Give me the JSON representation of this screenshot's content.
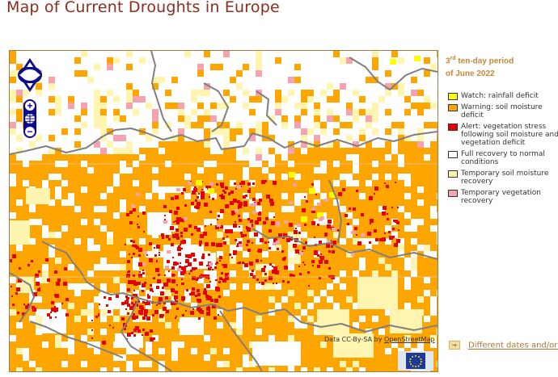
{
  "page": {
    "title": "Map of Current Droughts in Europe"
  },
  "period": {
    "ordinal": "3",
    "ordinal_suffix": "rd",
    "line1_rest": " ten-day period",
    "line2": "of June 2022"
  },
  "legend": [
    {
      "label": "Watch: rainfall deficit",
      "color": "#ffff00"
    },
    {
      "label": "Warning: soil moisture deficit",
      "color": "#ffa500"
    },
    {
      "label": "Alert: vegetation stress following soil moisture and vegetation deficit",
      "color": "#e60000"
    },
    {
      "label": "Full recovery to normal conditions",
      "color": "#ffffff"
    },
    {
      "label": "Temporary soil moisture recovery",
      "color": "#fff4b0"
    },
    {
      "label": "Temporary vegetation recovery",
      "color": "#f5a3b0"
    }
  ],
  "map": {
    "attribution_prefix": "Data CC-By-SA by ",
    "attribution_link": "OpenStreetMap",
    "colors": {
      "water": "#ffffff",
      "warning": "#ffa500",
      "alert": "#e60000",
      "watch": "#ffff00",
      "soil_recovery": "#fff4b0",
      "veg_recovery": "#f5a3b0",
      "border": "#808080"
    }
  },
  "controls": {
    "zoom_in": "+",
    "zoom_out": "−"
  },
  "footer": {
    "different_dates_link": "Different dates and/or c"
  }
}
